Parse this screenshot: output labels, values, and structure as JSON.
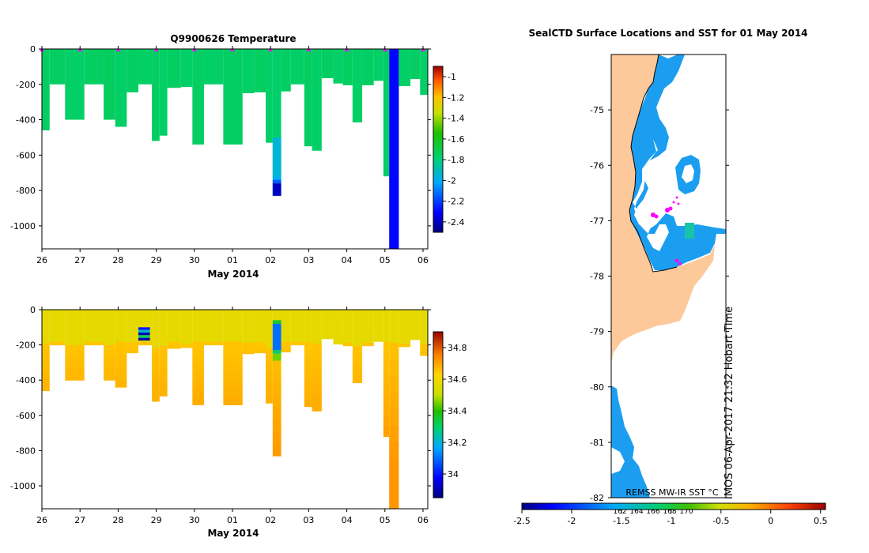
{
  "chart_data": [
    {
      "type": "heatmap",
      "panel": "temperature-section",
      "title": "Q9900626  Temperature",
      "xlabel": "May 2014",
      "ylabel": "",
      "x_tick_labels": [
        "26",
        "27",
        "28",
        "29",
        "30",
        "01",
        "02",
        "03",
        "04",
        "05",
        "06"
      ],
      "y_tick_labels": [
        "0",
        "-200",
        "-400",
        "-600",
        "-800",
        "-1000"
      ],
      "ylim": [
        -1130,
        0
      ],
      "colorbar": {
        "range": [
          -2.5,
          -0.9
        ],
        "tick_labels": [
          "-1",
          "-1.2",
          "-1.4",
          "-1.6",
          "-1.8",
          "-2",
          "-2.2",
          "-2.4"
        ],
        "tick_values": [
          -1,
          -1.2,
          -1.4,
          -1.6,
          -1.8,
          -2,
          -2.2,
          -2.4
        ]
      },
      "profile_markers": [
        0.0,
        1.0,
        2.0,
        3.0,
        4.0,
        5.0,
        6.0,
        7.0,
        8.0,
        9.0,
        10.0
      ],
      "profiles": [
        {
          "x0": 0.0,
          "x1": 0.2,
          "max_depth": 460,
          "value": -1.75
        },
        {
          "x0": 0.2,
          "x1": 0.6,
          "max_depth": 200,
          "value": -1.75
        },
        {
          "x0": 0.6,
          "x1": 1.1,
          "max_depth": 400,
          "value": -1.76
        },
        {
          "x0": 1.1,
          "x1": 1.6,
          "max_depth": 200,
          "value": -1.75
        },
        {
          "x0": 1.6,
          "x1": 1.9,
          "max_depth": 400,
          "value": -1.74
        },
        {
          "x0": 1.9,
          "x1": 2.2,
          "max_depth": 440,
          "value": -1.76
        },
        {
          "x0": 2.2,
          "x1": 2.5,
          "max_depth": 245,
          "value": -1.75
        },
        {
          "x0": 2.5,
          "x1": 2.85,
          "max_depth": 200,
          "value": -1.76
        },
        {
          "x0": 2.85,
          "x1": 3.05,
          "max_depth": 520,
          "value": -1.75
        },
        {
          "x0": 3.05,
          "x1": 3.25,
          "max_depth": 490,
          "value": -1.76
        },
        {
          "x0": 3.25,
          "x1": 3.6,
          "max_depth": 220,
          "value": -1.75
        },
        {
          "x0": 3.6,
          "x1": 3.9,
          "max_depth": 215,
          "value": -1.76
        },
        {
          "x0": 3.9,
          "x1": 4.2,
          "max_depth": 540,
          "value": -1.75
        },
        {
          "x0": 4.2,
          "x1": 4.7,
          "max_depth": 200,
          "value": -1.76
        },
        {
          "x0": 4.7,
          "x1": 5.2,
          "max_depth": 540,
          "value": -1.75
        },
        {
          "x0": 5.2,
          "x1": 5.5,
          "max_depth": 250,
          "value": -1.76
        },
        {
          "x0": 5.5,
          "x1": 5.8,
          "max_depth": 245,
          "value": -1.75
        },
        {
          "x0": 5.8,
          "x1": 5.98,
          "max_depth": 530,
          "value": -1.76
        },
        {
          "x0": 5.98,
          "x1": 6.2,
          "max_depth": 830,
          "value": -1.77
        },
        {
          "x0": 6.2,
          "x1": 6.45,
          "max_depth": 240,
          "value": -1.75
        },
        {
          "x0": 6.45,
          "x1": 6.8,
          "max_depth": 200,
          "value": -1.76
        },
        {
          "x0": 6.8,
          "x1": 7.0,
          "max_depth": 550,
          "value": -1.75
        },
        {
          "x0": 7.0,
          "x1": 7.25,
          "max_depth": 575,
          "value": -1.76
        },
        {
          "x0": 7.25,
          "x1": 7.55,
          "max_depth": 165,
          "value": -1.75
        },
        {
          "x0": 7.55,
          "x1": 7.8,
          "max_depth": 195,
          "value": -1.76
        },
        {
          "x0": 7.8,
          "x1": 8.05,
          "max_depth": 205,
          "value": -1.75
        },
        {
          "x0": 8.05,
          "x1": 8.3,
          "max_depth": 415,
          "value": -1.76
        },
        {
          "x0": 8.3,
          "x1": 8.6,
          "max_depth": 205,
          "value": -1.75
        },
        {
          "x0": 8.6,
          "x1": 8.85,
          "max_depth": 180,
          "value": -1.76
        },
        {
          "x0": 8.85,
          "x1": 9.0,
          "max_depth": 720,
          "value": -1.75
        },
        {
          "x0": 9.0,
          "x1": 9.25,
          "max_depth": 1130,
          "value": -2.3
        },
        {
          "x0": 9.25,
          "x1": 9.55,
          "max_depth": 210,
          "value": -1.76
        },
        {
          "x0": 9.55,
          "x1": 9.8,
          "max_depth": 170,
          "value": -1.75
        },
        {
          "x0": 9.8,
          "x1": 10.0,
          "max_depth": 260,
          "value": -1.76
        }
      ],
      "anomalies": [
        {
          "x0": 5.98,
          "x1": 6.2,
          "d0": 500,
          "d1": 720,
          "value": -1.95
        },
        {
          "x0": 5.98,
          "x1": 6.2,
          "d0": 720,
          "d1": 740,
          "value": -2.0
        },
        {
          "x0": 5.98,
          "x1": 6.2,
          "d0": 740,
          "d1": 760,
          "value": -2.15
        },
        {
          "x0": 5.98,
          "x1": 6.2,
          "d0": 760,
          "d1": 830,
          "value": -2.4
        }
      ]
    },
    {
      "type": "heatmap",
      "panel": "salinity-section",
      "title": "",
      "xlabel": "May 2014",
      "ylabel": "",
      "x_tick_labels": [
        "26",
        "27",
        "28",
        "29",
        "30",
        "01",
        "02",
        "03",
        "04",
        "05",
        "06"
      ],
      "y_tick_labels": [
        "0",
        "-200",
        "-400",
        "-600",
        "-800",
        "-1000"
      ],
      "ylim": [
        -1130,
        0
      ],
      "colorbar": {
        "range": [
          33.85,
          34.9
        ],
        "tick_labels": [
          "34.8",
          "34.6",
          "34.4",
          "34.2",
          "34"
        ],
        "tick_values": [
          34.8,
          34.6,
          34.4,
          34.2,
          34.0
        ]
      },
      "profiles": [
        {
          "x0": 0.0,
          "x1": 0.2,
          "max_depth": 460
        },
        {
          "x0": 0.2,
          "x1": 0.6,
          "max_depth": 200
        },
        {
          "x0": 0.6,
          "x1": 1.1,
          "max_depth": 400
        },
        {
          "x0": 1.1,
          "x1": 1.6,
          "max_depth": 200
        },
        {
          "x0": 1.6,
          "x1": 1.9,
          "max_depth": 400
        },
        {
          "x0": 1.9,
          "x1": 2.2,
          "max_depth": 440
        },
        {
          "x0": 2.2,
          "x1": 2.5,
          "max_depth": 245
        },
        {
          "x0": 2.5,
          "x1": 2.85,
          "max_depth": 200
        },
        {
          "x0": 2.85,
          "x1": 3.05,
          "max_depth": 520
        },
        {
          "x0": 3.05,
          "x1": 3.25,
          "max_depth": 490
        },
        {
          "x0": 3.25,
          "x1": 3.6,
          "max_depth": 220
        },
        {
          "x0": 3.6,
          "x1": 3.9,
          "max_depth": 215
        },
        {
          "x0": 3.9,
          "x1": 4.2,
          "max_depth": 540
        },
        {
          "x0": 4.2,
          "x1": 4.7,
          "max_depth": 200
        },
        {
          "x0": 4.7,
          "x1": 5.2,
          "max_depth": 540
        },
        {
          "x0": 5.2,
          "x1": 5.5,
          "max_depth": 250
        },
        {
          "x0": 5.5,
          "x1": 5.8,
          "max_depth": 245
        },
        {
          "x0": 5.8,
          "x1": 5.98,
          "max_depth": 530
        },
        {
          "x0": 5.98,
          "x1": 6.2,
          "max_depth": 830
        },
        {
          "x0": 6.2,
          "x1": 6.45,
          "max_depth": 240
        },
        {
          "x0": 6.45,
          "x1": 6.8,
          "max_depth": 200
        },
        {
          "x0": 6.8,
          "x1": 7.0,
          "max_depth": 550
        },
        {
          "x0": 7.0,
          "x1": 7.25,
          "max_depth": 575
        },
        {
          "x0": 7.25,
          "x1": 7.55,
          "max_depth": 165
        },
        {
          "x0": 7.55,
          "x1": 7.8,
          "max_depth": 195
        },
        {
          "x0": 7.8,
          "x1": 8.05,
          "max_depth": 205
        },
        {
          "x0": 8.05,
          "x1": 8.3,
          "max_depth": 415
        },
        {
          "x0": 8.3,
          "x1": 8.6,
          "max_depth": 205
        },
        {
          "x0": 8.6,
          "x1": 8.85,
          "max_depth": 180
        },
        {
          "x0": 8.85,
          "x1": 9.0,
          "max_depth": 720
        },
        {
          "x0": 9.0,
          "x1": 9.25,
          "max_depth": 1130
        },
        {
          "x0": 9.25,
          "x1": 9.55,
          "max_depth": 210
        },
        {
          "x0": 9.55,
          "x1": 9.8,
          "max_depth": 170
        },
        {
          "x0": 9.8,
          "x1": 10.0,
          "max_depth": 260
        }
      ],
      "surface_value": 34.57,
      "deep_value": 34.72,
      "anomalies": [
        {
          "x0": 2.5,
          "x1": 2.8,
          "d0": 100,
          "d1": 115,
          "value": 34.0
        },
        {
          "x0": 2.5,
          "x1": 2.8,
          "d0": 115,
          "d1": 130,
          "value": 34.2
        },
        {
          "x0": 2.5,
          "x1": 2.8,
          "d0": 130,
          "d1": 145,
          "value": 33.9
        },
        {
          "x0": 2.5,
          "x1": 2.8,
          "d0": 145,
          "d1": 160,
          "value": 34.3
        },
        {
          "x0": 2.5,
          "x1": 2.8,
          "d0": 160,
          "d1": 175,
          "value": 33.9
        },
        {
          "x0": 5.98,
          "x1": 6.2,
          "d0": 60,
          "d1": 80,
          "value": 34.35
        },
        {
          "x0": 5.98,
          "x1": 6.2,
          "d0": 80,
          "d1": 230,
          "value": 34.1
        },
        {
          "x0": 5.98,
          "x1": 6.2,
          "d0": 230,
          "d1": 250,
          "value": 34.3
        },
        {
          "x0": 5.98,
          "x1": 6.2,
          "d0": 250,
          "d1": 290,
          "value": 34.45
        }
      ]
    },
    {
      "type": "map",
      "panel": "sst-map",
      "title": "SealCTD Surface Locations and SST for 01 May 2014",
      "y_tick_labels": [
        "-75",
        "-76",
        "-77",
        "-78",
        "-79",
        "-80",
        "-81",
        "-82"
      ],
      "ylim": [
        -82,
        -74
      ],
      "colorbar": {
        "label": "REMSS MW-IR SST °C",
        "range": [
          -2.5,
          0.55
        ],
        "tick_labels": [
          "-2.5",
          "-2",
          "-1.5",
          "-1",
          "-0.5",
          "0",
          "0.5"
        ],
        "tick_values": [
          -2.5,
          -2,
          -1.5,
          -1,
          -0.5,
          0,
          0.5
        ]
      },
      "lon_labels": [
        "162",
        "164",
        "166",
        "168",
        "170"
      ],
      "credit": "IMOS 06-Apr-2017 21:32 Hobart Time"
    }
  ],
  "colors": {
    "land": "#fdc89a",
    "ice_coast": "#1c9ef0",
    "profile_marker": "#ff00ff",
    "teal_patch": "#18c4a8"
  }
}
